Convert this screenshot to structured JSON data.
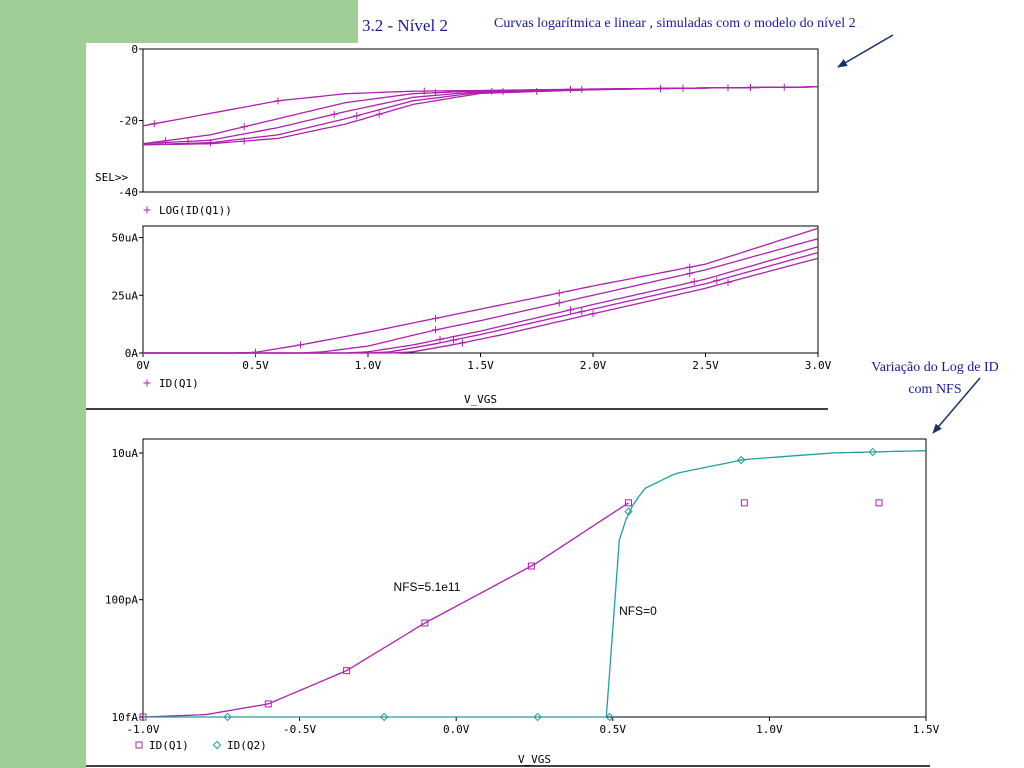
{
  "slide": {
    "title": "3.2 - Nível 2",
    "subtitle": "Curvas logarítmica e linear , simuladas com o modelo do nível 2",
    "note_nfs_line1": "Variação do Log de ID",
    "note_nfs_line2": "com NFS",
    "colors": {
      "background": "#ffffff",
      "sidebar": "#9fcf97",
      "annotation_text": "#1a1a99",
      "arrow": "#1a3366",
      "trace_q1": "#b020b0",
      "trace_q2": "#20a0a0",
      "axis": "#000000"
    }
  },
  "chart_data": [
    {
      "type": "line",
      "title": "",
      "ylim": [
        -40,
        0
      ],
      "xlim": [
        0,
        3
      ],
      "ytick_labels": [
        "0",
        "-20",
        "-40"
      ],
      "ytick_values": [
        0,
        -20,
        -40
      ],
      "sel_marker": "SEL>>",
      "legend": "LOG(ID(Q1))",
      "marker": "+",
      "series": [
        {
          "name": "LOG(ID(Q1)) 1",
          "x": [
            0,
            0.3,
            0.6,
            0.9,
            1.2,
            1.5,
            2.0,
            2.5,
            3.0
          ],
          "y": [
            -21.5,
            -18,
            -14.5,
            -12.5,
            -11.8,
            -11.6,
            -11.2,
            -10.9,
            -10.6
          ]
        },
        {
          "name": "LOG(ID(Q1)) 2",
          "x": [
            0,
            0.3,
            0.6,
            0.9,
            1.2,
            1.5,
            2.0,
            2.5,
            3.0
          ],
          "y": [
            -26.5,
            -24,
            -19.5,
            -15,
            -12.5,
            -11.7,
            -11.2,
            -10.9,
            -10.6
          ]
        },
        {
          "name": "LOG(ID(Q1)) 3",
          "x": [
            0,
            0.3,
            0.6,
            0.9,
            1.2,
            1.5,
            2.0,
            2.5,
            3.0
          ],
          "y": [
            -26.5,
            -25.5,
            -22,
            -17.5,
            -13.5,
            -11.9,
            -11.3,
            -10.9,
            -10.6
          ]
        },
        {
          "name": "LOG(ID(Q1)) 4",
          "x": [
            0,
            0.3,
            0.6,
            0.9,
            1.2,
            1.5,
            2.0,
            2.5,
            3.0
          ],
          "y": [
            -26.8,
            -26.2,
            -24,
            -19.5,
            -14.5,
            -12.1,
            -11.3,
            -10.9,
            -10.6
          ]
        },
        {
          "name": "LOG(ID(Q1)) 5",
          "x": [
            0,
            0.3,
            0.6,
            0.9,
            1.2,
            1.5,
            2.0,
            2.5,
            3.0
          ],
          "y": [
            -26.8,
            -26.5,
            -25,
            -21,
            -15.5,
            -12.4,
            -11.4,
            -10.9,
            -10.6
          ]
        }
      ]
    },
    {
      "type": "line",
      "title": "",
      "ylim": [
        0,
        55
      ],
      "xlim": [
        0,
        3
      ],
      "ytick_labels": [
        "50uA",
        "25uA",
        "0A"
      ],
      "ytick_values": [
        50,
        25,
        0
      ],
      "xtick_labels": [
        "0V",
        "0.5V",
        "1.0V",
        "1.5V",
        "2.0V",
        "2.5V",
        "3.0V"
      ],
      "xtick_values": [
        0,
        0.5,
        1.0,
        1.5,
        2.0,
        2.5,
        3.0
      ],
      "xlabel": "V_VGS",
      "legend": "ID(Q1)",
      "marker": "+",
      "series": [
        {
          "name": "ID(Q1) 1",
          "x": [
            0,
            0.4,
            0.5,
            0.7,
            1.0,
            1.5,
            2.0,
            2.5,
            3.0
          ],
          "y": [
            0,
            0,
            0.3,
            3.5,
            9,
            19,
            29,
            38.5,
            54
          ]
        },
        {
          "name": "ID(Q1) 2",
          "x": [
            0,
            0.7,
            0.8,
            1.0,
            1.3,
            1.5,
            2.0,
            2.5,
            3.0
          ],
          "y": [
            0,
            0,
            0.5,
            3,
            10,
            14,
            25,
            36,
            49.5
          ]
        },
        {
          "name": "ID(Q1) 3",
          "x": [
            0,
            0.9,
            1.0,
            1.2,
            1.5,
            2.0,
            2.5,
            3.0
          ],
          "y": [
            0,
            0,
            0.5,
            3.5,
            9.5,
            21,
            32,
            46
          ]
        },
        {
          "name": "ID(Q1) 4",
          "x": [
            0,
            1.0,
            1.1,
            1.3,
            1.5,
            2.0,
            2.5,
            3.0
          ],
          "y": [
            0,
            0,
            0.5,
            4,
            8,
            19,
            30,
            43.5
          ]
        },
        {
          "name": "ID(Q1) 5",
          "x": [
            0,
            1.1,
            1.2,
            1.4,
            1.6,
            2.0,
            2.5,
            3.0
          ],
          "y": [
            0,
            0,
            0.5,
            4,
            8,
            17,
            28,
            41
          ]
        }
      ]
    },
    {
      "type": "line",
      "title": "",
      "yscale": "log",
      "ylim": [
        1e-14,
        3e-05
      ],
      "xlim": [
        -1.0,
        1.5
      ],
      "ytick_labels": [
        "10uA",
        "100pA",
        "10fA"
      ],
      "ytick_values": [
        1e-05,
        1e-10,
        1e-14
      ],
      "xtick_labels": [
        "-1.0V",
        "-0.5V",
        "0.0V",
        "0.5V",
        "1.0V",
        "1.5V"
      ],
      "xtick_values": [
        -1.0,
        -0.5,
        0.0,
        0.5,
        1.0,
        1.5
      ],
      "xlabel": "V_VGS",
      "series": [
        {
          "name": "ID(Q1)",
          "marker": "square",
          "x": [
            -1.0,
            -0.8,
            -0.6,
            -0.35,
            -0.1,
            0.25,
            0.55
          ],
          "y": [
            1e-14,
            1.2e-14,
            2.8e-14,
            3.8e-13,
            1.6e-11,
            1.6e-09,
            2e-07
          ]
        },
        {
          "name": "ID(Q2)",
          "marker": "diamond",
          "x": [
            -1.0,
            0.49,
            0.5,
            0.52,
            0.55,
            0.6,
            0.7,
            0.92,
            1.2,
            1.35,
            1.5
          ],
          "y": [
            1e-14,
            1e-14,
            1e-11,
            1e-08,
            1e-07,
            6e-07,
            2e-06,
            6e-06,
            1e-05,
            1.1e-05,
            1.2e-05
          ]
        }
      ],
      "annotations": [
        {
          "text": "NFS=5.1e11",
          "x": -0.2,
          "y": 2e-10
        },
        {
          "text": "NFS=0",
          "x": 0.52,
          "y": 3e-11
        }
      ]
    }
  ]
}
